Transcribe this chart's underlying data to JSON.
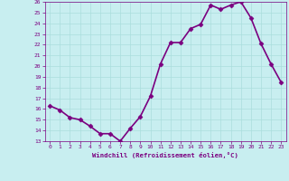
{
  "x": [
    0,
    1,
    2,
    3,
    4,
    5,
    6,
    7,
    8,
    9,
    10,
    11,
    12,
    13,
    14,
    15,
    16,
    17,
    18,
    19,
    20,
    21,
    22,
    23
  ],
  "y": [
    16.3,
    15.9,
    15.2,
    15.0,
    14.4,
    13.7,
    13.7,
    13.0,
    14.2,
    15.3,
    17.2,
    20.2,
    22.2,
    22.2,
    23.5,
    23.9,
    25.7,
    25.3,
    25.7,
    26.0,
    24.5,
    22.1,
    20.2,
    18.5
  ],
  "line_color": "#7B0080",
  "marker": "D",
  "marker_size": 2.5,
  "bg_color": "#c8eef0",
  "grid_color": "#aadddd",
  "xlabel": "Windchill (Refroidissement éolien,°C)",
  "xlim": [
    -0.5,
    23.5
  ],
  "ylim": [
    13,
    26
  ],
  "yticks": [
    13,
    14,
    15,
    16,
    17,
    18,
    19,
    20,
    21,
    22,
    23,
    24,
    25,
    26
  ],
  "xticks": [
    0,
    1,
    2,
    3,
    4,
    5,
    6,
    7,
    8,
    9,
    10,
    11,
    12,
    13,
    14,
    15,
    16,
    17,
    18,
    19,
    20,
    21,
    22,
    23
  ],
  "axis_label_color": "#7B0080",
  "tick_label_color": "#7B0080",
  "linewidth": 1.2
}
